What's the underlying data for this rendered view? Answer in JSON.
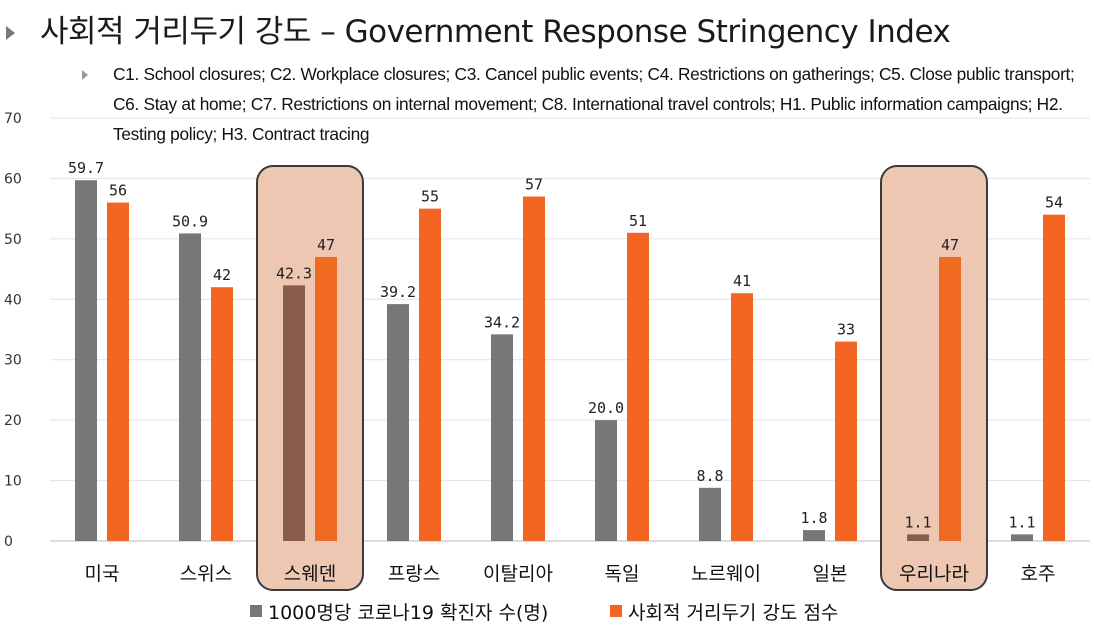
{
  "header": {
    "title": "사회적 거리두기 강도 – Government Response Stringency Index",
    "subtitle": "C1. School closures; C2. Workplace closures; C3. Cancel public events; C4. Restrictions on gatherings; C5. Close public transport; C6. Stay at home; C7. Restrictions on internal movement; C8. International travel controls; H1. Public information campaigns; H2. Testing policy; H3. Contract tracing"
  },
  "colors": {
    "series1": "#777777",
    "series2": "#f26522",
    "highlight_fill": "#edc7b1",
    "highlight_bar1": "#8a5c4c",
    "highlight_bar2": "#f06a22"
  },
  "chart_data": {
    "type": "bar",
    "title": "사회적 거리두기 강도 – Government Response Stringency Index",
    "xlabel": "",
    "ylabel": "",
    "ylim": [
      0,
      70
    ],
    "yticks": [
      "0",
      "10",
      "20",
      "30",
      "40",
      "50",
      "60",
      "70"
    ],
    "grid": true,
    "legend_position": "bottom",
    "categories": [
      "미국",
      "스위스",
      "스웨덴",
      "프랑스",
      "이탈리아",
      "독일",
      "노르웨이",
      "일본",
      "우리나라",
      "호주"
    ],
    "highlighted": [
      "스웨덴",
      "우리나라"
    ],
    "series": [
      {
        "name": "1000명당 코로나19 확진자 수(명)",
        "values": [
          59.7,
          50.9,
          42.3,
          39.2,
          34.2,
          20.0,
          8.8,
          1.8,
          1.1,
          1.1
        ],
        "labels": [
          "59.7",
          "50.9",
          "42.3",
          "39.2",
          "34.2",
          "20.0",
          "8.8",
          "1.8",
          "1.1",
          "1.1"
        ]
      },
      {
        "name": "사회적 거리두기 강도 점수",
        "values": [
          56,
          42,
          47,
          55,
          57,
          51,
          41,
          33,
          47,
          54
        ],
        "labels": [
          "56",
          "42",
          "47",
          "55",
          "57",
          "51",
          "41",
          "33",
          "47",
          "54"
        ]
      }
    ]
  }
}
